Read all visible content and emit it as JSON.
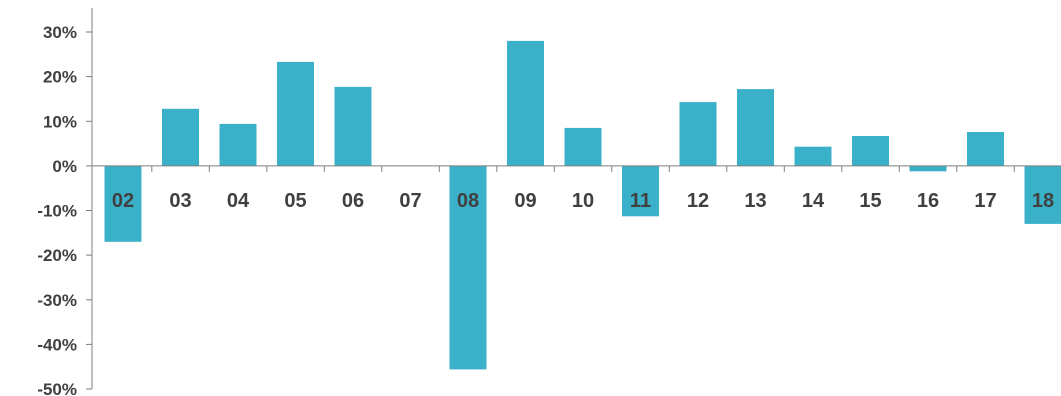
{
  "chart_data": {
    "type": "bar",
    "title": "",
    "xlabel": "",
    "ylabel": "",
    "categories": [
      "02",
      "03",
      "04",
      "05",
      "06",
      "07",
      "08",
      "09",
      "10",
      "11",
      "12",
      "13",
      "14",
      "15",
      "16",
      "17",
      "18"
    ],
    "values": [
      -17.0,
      12.8,
      9.4,
      23.3,
      17.7,
      0.0,
      -45.6,
      28.0,
      8.5,
      -11.3,
      14.3,
      17.2,
      4.3,
      6.7,
      -1.2,
      7.6,
      -13.0
    ],
    "ylim": [
      -50,
      30
    ],
    "yticks": [
      30,
      20,
      10,
      0,
      -10,
      -20,
      -30,
      -40,
      -50
    ],
    "ytick_labels": [
      "30%",
      "20%",
      "10%",
      "0%",
      "-10%",
      "-20%",
      "-30%",
      "-40%",
      "-50%"
    ],
    "grid": false,
    "legend": "none",
    "bar_color": "#3BB0C9",
    "axis_color": "#7F7F7F",
    "text_color": "#404040"
  }
}
